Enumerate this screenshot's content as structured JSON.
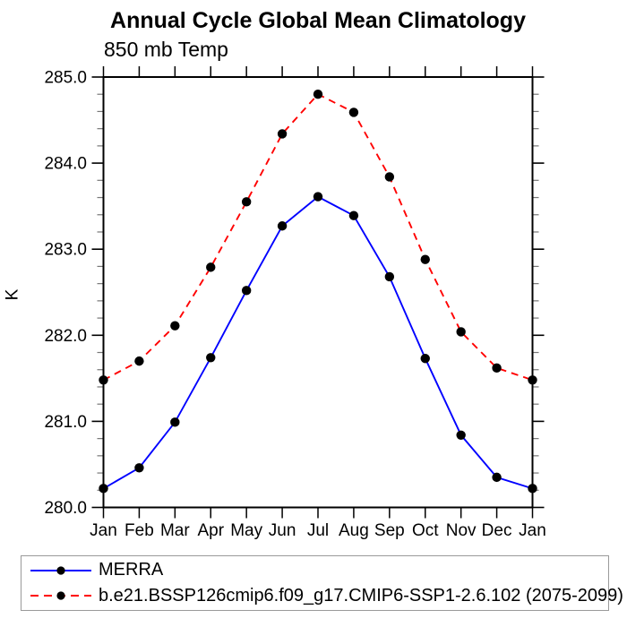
{
  "header": {
    "title": "Annual Cycle Global Mean Climatology",
    "subtitle": "850 mb Temp"
  },
  "chart_data": {
    "type": "line",
    "title": "Annual Cycle Global Mean Climatology",
    "subtitle": "850 mb Temp",
    "ylabel": "K",
    "categories": [
      "Jan",
      "Feb",
      "Mar",
      "Apr",
      "May",
      "Jun",
      "Jul",
      "Aug",
      "Sep",
      "Oct",
      "Nov",
      "Dec",
      "Jan"
    ],
    "series": [
      {
        "name": "MERRA",
        "color": "#0000ff",
        "line_style": "solid",
        "marker": "filled-circle",
        "marker_color": "#000000",
        "values": [
          280.22,
          280.46,
          280.99,
          281.74,
          282.52,
          283.27,
          283.61,
          283.39,
          282.68,
          281.73,
          280.84,
          280.35,
          280.22
        ]
      },
      {
        "name": "b.e21.BSSP126cmip6.f09_g17.CMIP6-SSP1-2.6.102 (2075-2099)",
        "color": "#ff0000",
        "line_style": "dashed",
        "marker": "filled-circle",
        "marker_color": "#000000",
        "values": [
          281.48,
          281.7,
          282.11,
          282.79,
          283.55,
          284.34,
          284.8,
          284.59,
          283.84,
          282.88,
          282.04,
          281.62,
          281.48
        ]
      }
    ],
    "ylim": [
      280.0,
      285.0
    ],
    "y_major_step": 1.0,
    "y_minor_step": 0.2,
    "y_tick_decimals": 1,
    "grid": false,
    "legend_position": "bottom-left",
    "style": {
      "axis_color": "#000000",
      "minor_tick_color": "#777777"
    }
  },
  "legend": {
    "items": [
      {
        "label": "MERRA",
        "color": "#0000ff",
        "dash": "solid"
      },
      {
        "label": "b.e21.BSSP126cmip6.f09_g17.CMIP6-SSP1-2.6.102 (2075-2099)",
        "color": "#ff0000",
        "dash": "dashed"
      }
    ]
  }
}
